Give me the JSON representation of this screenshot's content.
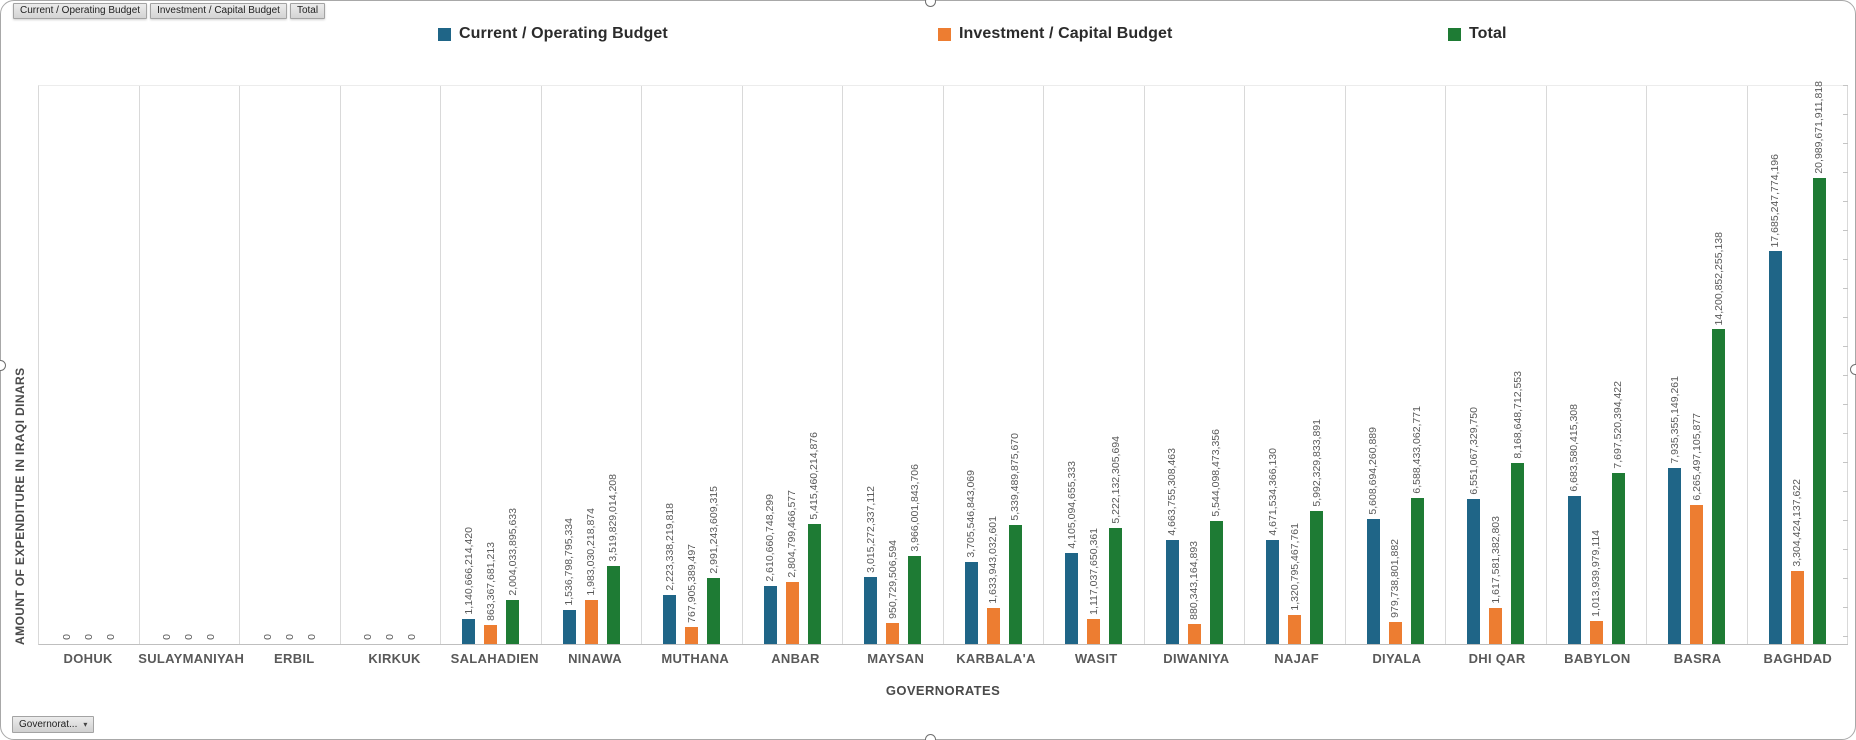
{
  "field_buttons": [
    {
      "label": "Current / Operating Budget"
    },
    {
      "label": "Investment / Capital Budget"
    },
    {
      "label": "Total"
    }
  ],
  "axis_field_button": {
    "label": "Governorat...",
    "dropdown_icon": "▾"
  },
  "legend": [
    {
      "label": "Current / Operating Budget",
      "color": "#1F6587"
    },
    {
      "label": "Investment / Capital Budget",
      "color": "#ED7D31"
    },
    {
      "label": "Total",
      "color": "#1E7B34"
    }
  ],
  "chart_data": {
    "type": "bar",
    "title": "",
    "xlabel": "GOVERNORATES",
    "ylabel": "AMOUNT OF EXPENDITURE IN IRAQI DINARS",
    "legend_position": "top",
    "grid": "vertical-category-separators",
    "value_labels": "rotated-90-above-bars",
    "ylim": [
      0,
      25200000000000
    ],
    "categories": [
      "DOHUK",
      "SULAYMANIYAH",
      "ERBIL",
      "KIRKUK",
      "SALAHADIEN",
      "NINAWA",
      "MUTHANA",
      "ANBAR",
      "MAYSAN",
      "KARBALA'A",
      "WASIT",
      "DIWANIYA",
      "NAJAF",
      "DIYALA",
      "DHI QAR",
      "BABYLON",
      "BASRA",
      "BAGHDAD"
    ],
    "series": [
      {
        "name": "Current / Operating Budget",
        "color": "#1F6587",
        "values": [
          0,
          0,
          0,
          0,
          1140666214420,
          1536798795334,
          2223338219818,
          2610660748299,
          3015272337112,
          3705546843069,
          4105094655333,
          4663755308463,
          4671534366130,
          5608694260889,
          6551067329750,
          6683580415308,
          7935355149261,
          17685247774196
        ]
      },
      {
        "name": "Investment / Capital Budget",
        "color": "#ED7D31",
        "values": [
          0,
          0,
          0,
          0,
          863367681213,
          1983030218874,
          767905389497,
          2804799466577,
          950729506594,
          1633943032601,
          1117037650361,
          880343164893,
          1320795467761,
          979738801882,
          1617581382803,
          1013939979114,
          6265497105877,
          3304424137622
        ]
      },
      {
        "name": "Total",
        "color": "#1E7B34",
        "values": [
          0,
          0,
          0,
          0,
          2004033895633,
          3519829014208,
          2991243609315,
          5415460214876,
          3966001843706,
          5339489875670,
          5222132305694,
          5544098473356,
          5992329833891,
          6588433062771,
          8168648712553,
          7697520394422,
          14200852255138,
          20989671911818
        ]
      }
    ]
  }
}
